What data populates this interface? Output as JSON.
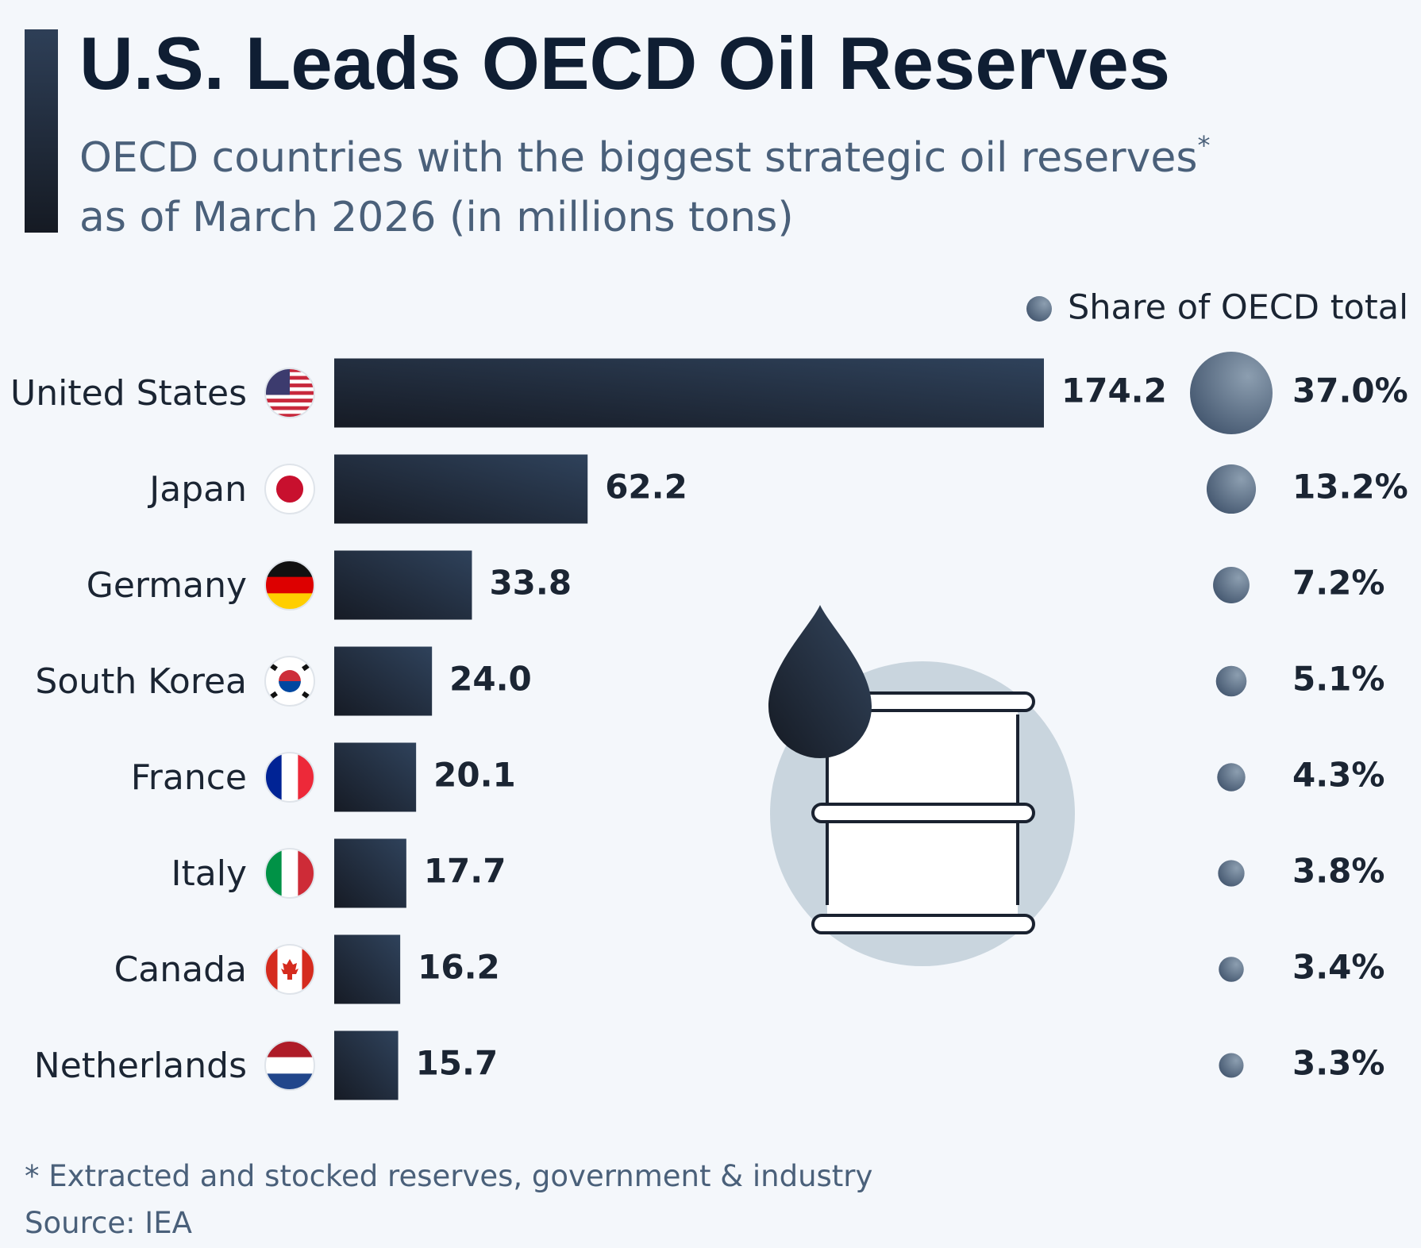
{
  "chart_data": {
    "type": "bar",
    "orientation": "horizontal",
    "title": "U.S. Leads OECD Oil Reserves",
    "subtitle": [
      "OECD countries with the biggest strategic oil reserves",
      "as of March 2026 (in millions tons)"
    ],
    "subtitle_mark": "*",
    "categories": [
      "United States",
      "Japan",
      "Germany",
      "South Korea",
      "France",
      "Italy",
      "Canada",
      "Netherlands"
    ],
    "values": [
      174.2,
      62.2,
      33.8,
      24.0,
      20.1,
      17.7,
      16.2,
      15.7
    ],
    "value_labels": [
      "174.2",
      "62.2",
      "33.8",
      "24.0",
      "20.1",
      "17.7",
      "16.2",
      "15.7"
    ],
    "color": [
      "#161b25",
      "#2f425b"
    ],
    "share": {
      "name": "Share of OECD total",
      "values": [
        37.0,
        13.2,
        7.2,
        5.1,
        4.3,
        3.8,
        3.4,
        3.3
      ],
      "value_labels": [
        "37.0%",
        "13.2%",
        "7.2%",
        "5.1%",
        "4.3%",
        "3.8%",
        "3.4%",
        "3.3%"
      ],
      "color": [
        "#8c9eb0",
        "#3c4f68"
      ]
    },
    "footnote": "* Extracted and stocked reserves, government & industry",
    "source": "Source: IEA"
  }
}
